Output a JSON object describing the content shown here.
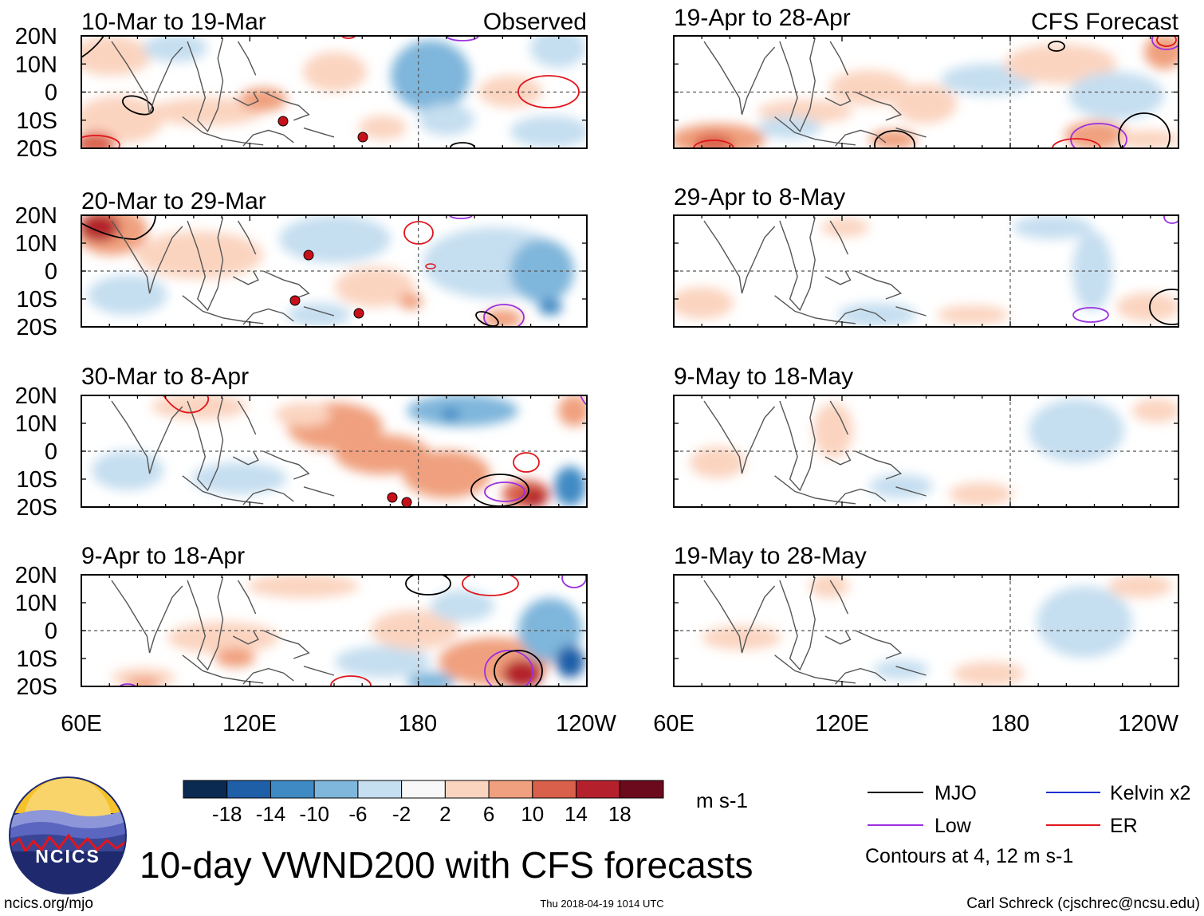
{
  "figure_title": "10-day VWND200 with CFS forecasts",
  "left_column_label": "Observed",
  "right_column_label": "CFS Forecast",
  "y_tick_labels": [
    "20N",
    "10N",
    "0",
    "10S",
    "20S"
  ],
  "x_tick_labels": [
    "60E",
    "120E",
    "180",
    "120W"
  ],
  "panels": {
    "observed": [
      {
        "period": "10-Mar to 19-Mar"
      },
      {
        "period": "20-Mar to 29-Mar"
      },
      {
        "period": "30-Mar to 8-Apr"
      },
      {
        "period": "9-Apr to 18-Apr"
      }
    ],
    "forecast": [
      {
        "period": "19-Apr to 28-Apr"
      },
      {
        "period": "29-Apr to 8-May"
      },
      {
        "period": "9-May to 18-May"
      },
      {
        "period": "19-May to 28-May"
      }
    ]
  },
  "colorbar": {
    "units": "m s-1",
    "tick_labels": [
      "-18",
      "-14",
      "-10",
      "-6",
      "-2",
      "2",
      "6",
      "10",
      "14",
      "18"
    ],
    "colors": [
      "#0b2a52",
      "#1f5fa8",
      "#3f8ac4",
      "#7fb6db",
      "#c5def0",
      "#f8f8f8",
      "#fbd4c0",
      "#f0a07e",
      "#d9604b",
      "#b4202c",
      "#6c0a1d"
    ]
  },
  "legend": {
    "items": [
      {
        "label": "MJO",
        "color": "#000000"
      },
      {
        "label": "Kelvin x2",
        "color": "#1f2fd0"
      },
      {
        "label": "Low",
        "color": "#9b30e0"
      },
      {
        "label": "ER",
        "color": "#e0161c"
      }
    ],
    "note": "Contours at 4, 12 m s-1"
  },
  "footer": {
    "left": "ncics.org/mjo",
    "center": "Thu 2018-04-19 1014 UTC",
    "right": "Carl Schreck (cjschrec@ncsu.edu)"
  },
  "logo": {
    "text": "NCICS"
  }
}
